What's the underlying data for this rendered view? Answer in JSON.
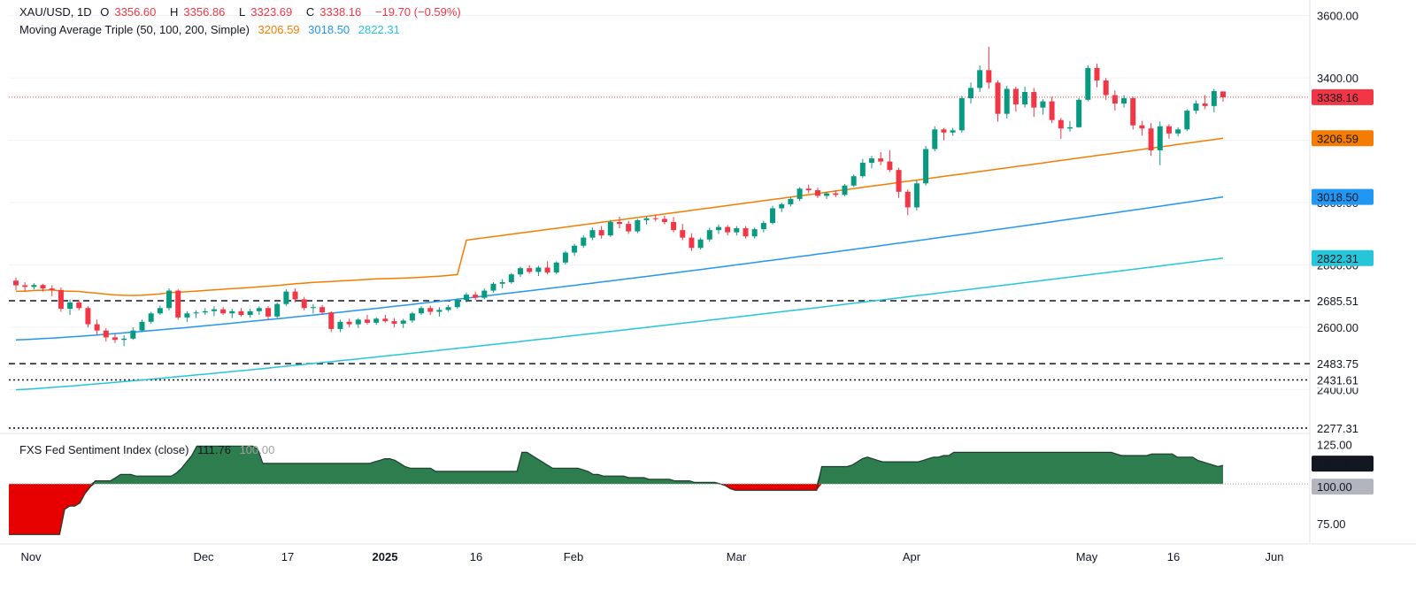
{
  "legend": {
    "symbol": "XAU/USD, 1D",
    "open_label": "O",
    "open": "3356.60",
    "high_label": "H",
    "high": "3356.86",
    "low_label": "L",
    "low": "3323.69",
    "close_label": "C",
    "close": "3338.16",
    "change": "−19.70 (−0.59%)",
    "ma_title": "Moving Average Triple (50, 100, 200, Simple)",
    "ma50": "3206.59",
    "ma100": "3018.50",
    "ma200": "2822.31",
    "indicator_title": "FXS Fed Sentiment Index (close)",
    "indicator_value": "111.76",
    "indicator_ref": "100.00"
  },
  "colors": {
    "up": "#089981",
    "down": "#f23645",
    "ma50": "#f57c00",
    "ma100": "#2196f3",
    "ma200": "#26c6da",
    "sentiment_fill": "#2e7d4f"
  },
  "chart_data": [
    {
      "type": "candlestick",
      "symbol": "XAU/USD",
      "timeframe": "1D",
      "x_ticks": [
        "Nov",
        "Dec",
        "17",
        "2025",
        "16",
        "Feb",
        "Mar",
        "Apr",
        "May",
        "16",
        "Jun"
      ],
      "y_ticks": [
        "2400.00",
        "2600.00",
        "2800.00",
        "3000.00",
        "3200.00",
        "3400.00",
        "3600.00"
      ],
      "ylim": [
        2260,
        3650
      ],
      "price_labels": [
        {
          "value": 3338.16,
          "text": "3338.16",
          "kind": "last"
        },
        {
          "value": 3206.59,
          "text": "3206.59",
          "kind": "ma50"
        },
        {
          "value": 3018.5,
          "text": "3018.50",
          "kind": "ma100"
        },
        {
          "value": 2822.31,
          "text": "2822.31",
          "kind": "ma200"
        },
        {
          "value": 2685.51,
          "text": "2685.51",
          "kind": "level"
        },
        {
          "value": 2483.75,
          "text": "2483.75",
          "kind": "level"
        },
        {
          "value": 2431.61,
          "text": "2431.61",
          "kind": "level"
        },
        {
          "value": 2277.31,
          "text": "2277.31",
          "kind": "level"
        }
      ],
      "horizontal_levels": [
        {
          "value": 2685.51,
          "style": "dashed"
        },
        {
          "value": 2483.75,
          "style": "dashed"
        },
        {
          "value": 2431.61,
          "style": "dotted"
        },
        {
          "value": 2277.31,
          "style": "dotted"
        }
      ],
      "candles": [
        [
          2750,
          2760,
          2720,
          2735
        ],
        [
          2735,
          2745,
          2715,
          2730
        ],
        [
          2730,
          2742,
          2722,
          2736
        ],
        [
          2736,
          2740,
          2715,
          2725
        ],
        [
          2725,
          2735,
          2700,
          2720
        ],
        [
          2720,
          2728,
          2650,
          2660
        ],
        [
          2660,
          2690,
          2640,
          2680
        ],
        [
          2680,
          2688,
          2655,
          2662
        ],
        [
          2662,
          2668,
          2600,
          2610
        ],
        [
          2610,
          2625,
          2575,
          2590
        ],
        [
          2590,
          2598,
          2555,
          2568
        ],
        [
          2568,
          2580,
          2550,
          2560
        ],
        [
          2560,
          2575,
          2540,
          2564
        ],
        [
          2564,
          2600,
          2560,
          2590
        ],
        [
          2590,
          2625,
          2585,
          2618
        ],
        [
          2618,
          2650,
          2612,
          2645
        ],
        [
          2645,
          2670,
          2640,
          2662
        ],
        [
          2662,
          2725,
          2655,
          2718
        ],
        [
          2718,
          2722,
          2625,
          2632
        ],
        [
          2632,
          2652,
          2618,
          2645
        ],
        [
          2645,
          2655,
          2630,
          2648
        ],
        [
          2648,
          2662,
          2640,
          2652
        ],
        [
          2652,
          2668,
          2636,
          2658
        ],
        [
          2658,
          2665,
          2640,
          2645
        ],
        [
          2645,
          2660,
          2630,
          2652
        ],
        [
          2652,
          2662,
          2635,
          2640
        ],
        [
          2640,
          2660,
          2632,
          2652
        ],
        [
          2652,
          2668,
          2640,
          2662
        ],
        [
          2662,
          2668,
          2625,
          2635
        ],
        [
          2635,
          2680,
          2630,
          2675
        ],
        [
          2675,
          2722,
          2668,
          2715
        ],
        [
          2715,
          2725,
          2680,
          2690
        ],
        [
          2690,
          2698,
          2655,
          2662
        ],
        [
          2662,
          2675,
          2645,
          2665
        ],
        [
          2665,
          2672,
          2640,
          2648
        ],
        [
          2648,
          2652,
          2585,
          2595
        ],
        [
          2595,
          2625,
          2585,
          2618
        ],
        [
          2618,
          2628,
          2600,
          2610
        ],
        [
          2610,
          2630,
          2598,
          2625
        ],
        [
          2625,
          2640,
          2610,
          2615
        ],
        [
          2615,
          2632,
          2608,
          2628
        ],
        [
          2628,
          2640,
          2615,
          2620
        ],
        [
          2620,
          2630,
          2600,
          2612
        ],
        [
          2612,
          2628,
          2598,
          2622
        ],
        [
          2622,
          2650,
          2615,
          2645
        ],
        [
          2645,
          2668,
          2640,
          2662
        ],
        [
          2662,
          2670,
          2640,
          2650
        ],
        [
          2650,
          2665,
          2635,
          2656
        ],
        [
          2656,
          2672,
          2650,
          2665
        ],
        [
          2665,
          2692,
          2660,
          2688
        ],
        [
          2688,
          2712,
          2680,
          2705
        ],
        [
          2705,
          2715,
          2688,
          2695
        ],
        [
          2695,
          2725,
          2690,
          2718
        ],
        [
          2718,
          2745,
          2712,
          2740
        ],
        [
          2740,
          2755,
          2725,
          2745
        ],
        [
          2745,
          2775,
          2740,
          2770
        ],
        [
          2770,
          2795,
          2762,
          2790
        ],
        [
          2790,
          2800,
          2772,
          2778
        ],
        [
          2778,
          2798,
          2765,
          2792
        ],
        [
          2792,
          2812,
          2770,
          2776
        ],
        [
          2776,
          2812,
          2770,
          2808
        ],
        [
          2808,
          2845,
          2802,
          2840
        ],
        [
          2840,
          2868,
          2830,
          2862
        ],
        [
          2862,
          2895,
          2855,
          2888
        ],
        [
          2888,
          2920,
          2880,
          2912
        ],
        [
          2912,
          2925,
          2885,
          2895
        ],
        [
          2895,
          2945,
          2890,
          2938
        ],
        [
          2938,
          2955,
          2918,
          2932
        ],
        [
          2932,
          2942,
          2900,
          2908
        ],
        [
          2908,
          2948,
          2902,
          2944
        ],
        [
          2944,
          2956,
          2930,
          2950
        ],
        [
          2950,
          2962,
          2940,
          2948
        ],
        [
          2948,
          2958,
          2930,
          2938
        ],
        [
          2938,
          2954,
          2905,
          2912
        ],
        [
          2912,
          2932,
          2880,
          2888
        ],
        [
          2888,
          2902,
          2845,
          2855
        ],
        [
          2855,
          2888,
          2850,
          2882
        ],
        [
          2882,
          2920,
          2875,
          2912
        ],
        [
          2912,
          2930,
          2900,
          2922
        ],
        [
          2922,
          2928,
          2895,
          2905
        ],
        [
          2905,
          2925,
          2895,
          2918
        ],
        [
          2918,
          2925,
          2885,
          2892
        ],
        [
          2892,
          2920,
          2885,
          2915
        ],
        [
          2915,
          2942,
          2905,
          2935
        ],
        [
          2935,
          2990,
          2930,
          2982
        ],
        [
          2982,
          3000,
          2970,
          2995
        ],
        [
          2995,
          3018,
          2988,
          3012
        ],
        [
          3012,
          3050,
          3005,
          3045
        ],
        [
          3045,
          3058,
          3030,
          3040
        ],
        [
          3040,
          3048,
          3015,
          3022
        ],
        [
          3022,
          3035,
          3012,
          3030
        ],
        [
          3030,
          3040,
          3018,
          3025
        ],
        [
          3025,
          3060,
          3020,
          3055
        ],
        [
          3055,
          3090,
          3050,
          3085
        ],
        [
          3085,
          3140,
          3080,
          3128
        ],
        [
          3128,
          3150,
          3110,
          3142
        ],
        [
          3142,
          3162,
          3120,
          3132
        ],
        [
          3132,
          3168,
          3098,
          3105
        ],
        [
          3105,
          3112,
          3015,
          3035
        ],
        [
          3035,
          3042,
          2960,
          2985
        ],
        [
          2985,
          3072,
          2975,
          3062
        ],
        [
          3062,
          3182,
          3055,
          3172
        ],
        [
          3172,
          3245,
          3165,
          3235
        ],
        [
          3235,
          3240,
          3200,
          3225
        ],
        [
          3225,
          3240,
          3215,
          3232
        ],
        [
          3232,
          3342,
          3225,
          3335
        ],
        [
          3335,
          3385,
          3318,
          3368
        ],
        [
          3368,
          3440,
          3355,
          3425
        ],
        [
          3425,
          3500,
          3365,
          3385
        ],
        [
          3385,
          3392,
          3260,
          3285
        ],
        [
          3285,
          3375,
          3270,
          3365
        ],
        [
          3365,
          3372,
          3292,
          3315
        ],
        [
          3315,
          3372,
          3305,
          3355
        ],
        [
          3355,
          3368,
          3275,
          3305
        ],
        [
          3305,
          3332,
          3282,
          3325
        ],
        [
          3325,
          3340,
          3255,
          3265
        ],
        [
          3265,
          3272,
          3205,
          3238
        ],
        [
          3238,
          3262,
          3228,
          3242
        ],
        [
          3242,
          3335,
          3240,
          3330
        ],
        [
          3330,
          3440,
          3325,
          3432
        ],
        [
          3432,
          3446,
          3370,
          3392
        ],
        [
          3392,
          3400,
          3330,
          3345
        ],
        [
          3345,
          3360,
          3295,
          3318
        ],
        [
          3318,
          3345,
          3305,
          3335
        ],
        [
          3335,
          3340,
          3235,
          3248
        ],
        [
          3248,
          3262,
          3215,
          3238
        ],
        [
          3238,
          3255,
          3150,
          3168
        ],
        [
          3168,
          3260,
          3120,
          3245
        ],
        [
          3245,
          3252,
          3205,
          3222
        ],
        [
          3222,
          3242,
          3212,
          3235
        ],
        [
          3235,
          3300,
          3230,
          3295
        ],
        [
          3295,
          3328,
          3285,
          3318
        ],
        [
          3318,
          3345,
          3300,
          3310
        ],
        [
          3310,
          3365,
          3290,
          3358
        ],
        [
          3356.6,
          3356.86,
          3323.69,
          3338.16
        ]
      ],
      "series": [
        {
          "name": "50",
          "values": [
            2700,
            3206.59
          ]
        },
        {
          "name": "100",
          "values": [
            2560,
            3018.5
          ]
        },
        {
          "name": "200",
          "values": [
            2400,
            2822.31
          ]
        }
      ]
    },
    {
      "type": "area",
      "title": "FXS Fed Sentiment Index (close)",
      "y_ticks": [
        "75.00",
        "100.00",
        "125.00"
      ],
      "ylim": [
        62,
        132
      ],
      "baseline": 100,
      "value_labels": [
        {
          "value": 111.76,
          "text": "111.76",
          "kind": "current"
        },
        {
          "value": 100.0,
          "text": "100.00",
          "kind": "baseline"
        }
      ],
      "values": [
        68,
        68,
        68,
        68,
        68,
        68,
        68,
        68,
        68,
        68,
        68,
        84,
        86,
        86,
        88,
        94,
        98,
        102,
        102,
        102,
        102,
        104,
        106,
        106,
        106,
        105,
        105,
        105,
        105,
        105,
        105,
        105,
        105,
        107,
        110,
        114,
        118,
        124,
        124,
        124,
        124,
        124,
        124,
        124,
        124,
        124,
        124,
        124,
        124,
        122,
        113,
        113,
        113,
        113,
        113,
        113,
        113,
        113,
        113,
        113,
        113,
        113,
        113,
        113,
        113,
        113,
        113,
        113,
        113,
        113,
        113,
        113,
        114,
        115,
        116,
        116,
        115,
        113,
        111,
        110,
        110,
        110,
        110,
        110,
        108,
        108,
        108,
        108,
        108,
        108,
        108,
        108,
        108,
        108,
        108,
        108,
        108,
        108,
        108,
        108,
        108,
        120,
        120,
        118,
        116,
        114,
        112,
        110,
        110,
        110,
        110,
        110,
        110,
        109,
        108,
        106,
        106,
        105,
        105,
        105,
        105,
        105,
        104,
        104,
        104,
        104,
        103,
        103,
        103,
        103,
        103,
        102,
        102,
        102,
        102,
        101,
        101,
        101,
        101,
        101,
        100,
        99,
        97,
        96,
        96,
        96,
        96,
        96,
        96,
        96,
        96,
        96,
        96,
        96,
        96,
        96,
        96,
        96,
        96,
        96,
        111,
        111,
        111,
        111,
        111,
        111,
        112,
        114,
        116,
        117,
        116,
        115,
        114,
        114,
        114,
        114,
        114,
        114,
        114,
        114,
        115,
        116,
        117,
        117,
        118,
        118,
        120,
        120,
        120,
        120,
        120,
        120,
        120,
        120,
        120,
        120,
        120,
        120,
        120,
        120,
        120,
        120,
        120,
        120,
        120,
        120,
        120,
        120,
        120,
        120,
        120,
        120,
        120,
        120,
        120,
        120,
        120,
        120,
        119,
        118,
        118,
        118,
        118,
        118,
        118,
        119,
        119,
        119,
        119,
        119,
        117,
        117,
        117,
        117,
        115,
        114,
        113,
        112,
        111,
        111.76
      ]
    }
  ]
}
